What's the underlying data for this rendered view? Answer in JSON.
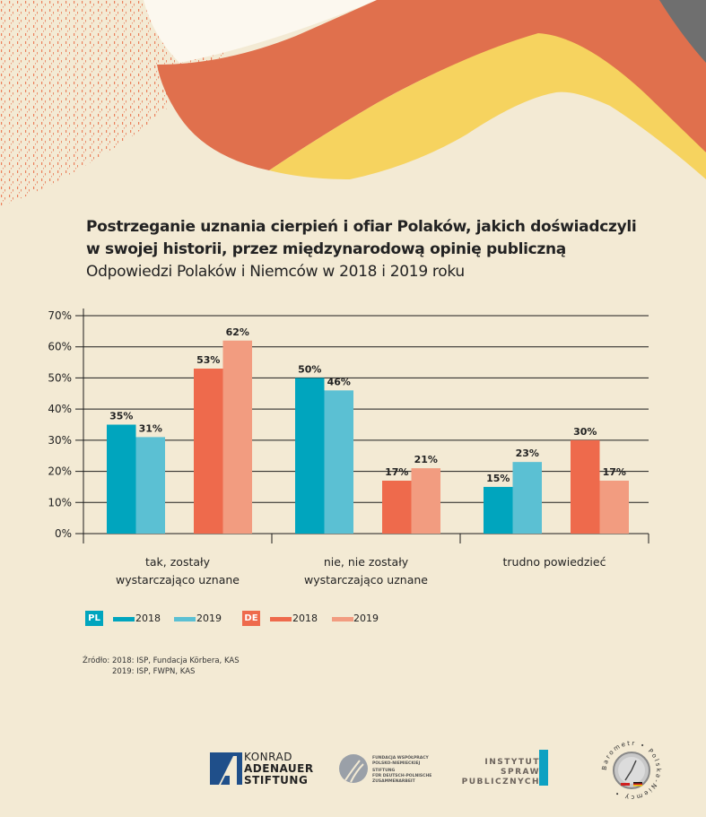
{
  "title": "Postrzeganie uznania cierpień i ofiar Polaków, jakich doświadczyli w swojej historii, przez międzynarodową opinię publiczną",
  "title_line1": "Postrzeganie uznania cierpień i ofiar Polaków, jakich doświadczyli",
  "title_line2": "w swojej historii, przez międzynarodową opinię publiczną",
  "subtitle": "Odpowiedzi Polaków i Niemców w 2018 i 2019 roku",
  "colors": {
    "pl_2018": "#00a5be",
    "pl_2019": "#5bc0d3",
    "de_2018": "#ee6a4c",
    "de_2019": "#f29c80",
    "background": "#f3ead4",
    "wave_orange": "#e0704d",
    "wave_yellow": "#f6d35f"
  },
  "chart_data": {
    "type": "bar",
    "title": "Postrzeganie uznania cierpień i ofiar Polaków, jakich doświadczyli w swojej historii, przez międzynarodową opinię publiczną",
    "subtitle": "Odpowiedzi Polaków i Niemców w 2018 i 2019 roku",
    "categories": [
      "tak, zostały wystarczająco uznane",
      "nie, nie zostały wystarczająco uznane",
      "trudno powiedzieć"
    ],
    "category_lines": [
      [
        "tak, zostały",
        "wystarczająco uznane"
      ],
      [
        "nie, nie zostały",
        "wystarczająco uznane"
      ],
      [
        "trudno powiedzieć"
      ]
    ],
    "series": [
      {
        "name": "PL 2018",
        "group": "PL",
        "year": "2018",
        "values": [
          35,
          50,
          15
        ],
        "labels": [
          "35%",
          "50%",
          "15%"
        ]
      },
      {
        "name": "PL 2019",
        "group": "PL",
        "year": "2019",
        "values": [
          31,
          46,
          23
        ],
        "labels": [
          "31%",
          "46%",
          "23%"
        ]
      },
      {
        "name": "DE 2018",
        "group": "DE",
        "year": "2018",
        "values": [
          53,
          17,
          30
        ],
        "labels": [
          "53%",
          "17%",
          "30%"
        ]
      },
      {
        "name": "DE 2019",
        "group": "DE",
        "year": "2019",
        "values": [
          62,
          21,
          17
        ],
        "labels": [
          "62%",
          "21%",
          "17%"
        ]
      }
    ],
    "xlabel": "",
    "ylabel": "",
    "ylim": [
      0,
      70
    ],
    "yticks": [
      0,
      10,
      20,
      30,
      40,
      50,
      60,
      70
    ],
    "ytick_labels": [
      "0%",
      "10%",
      "20%",
      "30%",
      "40%",
      "50%",
      "60%",
      "70%"
    ],
    "grid": true,
    "legend_position": "bottom-left"
  },
  "legend": {
    "pl_badge": "PL",
    "de_badge": "DE",
    "items": [
      {
        "label": "2018"
      },
      {
        "label": "2019"
      },
      {
        "label": "2018"
      },
      {
        "label": "2019"
      }
    ]
  },
  "source": {
    "label": "Źródło:",
    "line1": "2018: ISP, Fundacja Körbera, KAS",
    "line2": "2019: ISP, FWPN, KAS"
  },
  "logos": {
    "kas": [
      "KONRAD",
      "ADENAUER",
      "STIFTUNG"
    ],
    "fwpn": [
      "FUNDACJA WSPÓŁPRACY",
      "POLSKO-NIEMIECKIEJ",
      "STIFTUNG",
      "FÜR DEUTSCH-POLNISCHE",
      "ZUSAMMENARBEIT"
    ],
    "isp": [
      "INSTYTUT SPRAW",
      "PUBLICZNYCH"
    ],
    "barometr": "Barometr • Polska-Niemcy •"
  }
}
